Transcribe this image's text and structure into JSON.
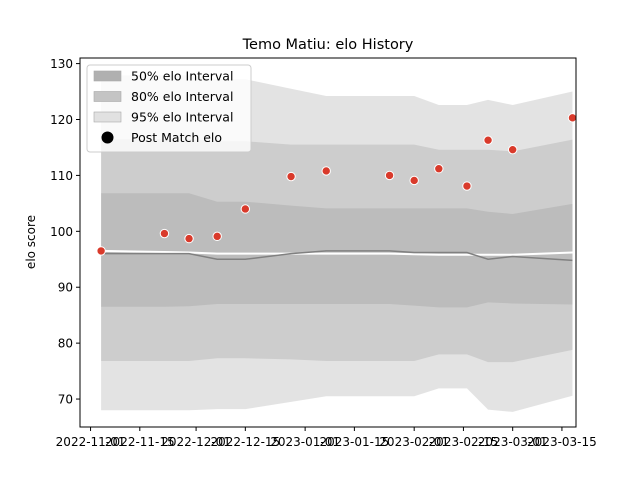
{
  "chart_data": {
    "type": "line",
    "title": "Temo Matiu: elo History",
    "xlabel": "",
    "ylabel": "elo score",
    "grid": false,
    "legend_position": "top-left",
    "ylim": [
      65,
      131
    ],
    "xlim": [
      "2022-10-29",
      "2023-03-19"
    ],
    "x_ticks": [
      "2022-11-01",
      "2022-11-15",
      "2022-12-01",
      "2022-12-15",
      "2023-01-01",
      "2023-01-15",
      "2023-02-01",
      "2023-02-15",
      "2023-03-01",
      "2023-03-15"
    ],
    "y_ticks": [
      70,
      80,
      90,
      100,
      110,
      120,
      130
    ],
    "legend": [
      {
        "label": "50% elo Interval",
        "color": "#b0b0b0"
      },
      {
        "label": "80% elo Interval",
        "color": "#c4c4c4"
      },
      {
        "label": "95% elo Interval",
        "color": "#e1e1e1"
      },
      {
        "label": "Post Match elo",
        "color": "#000000"
      }
    ],
    "band_dates": [
      "2022-11-04",
      "2022-11-22",
      "2022-11-29",
      "2022-12-07",
      "2022-12-15",
      "2022-12-28",
      "2023-01-07",
      "2023-01-25",
      "2023-02-01",
      "2023-02-08",
      "2023-02-16",
      "2023-02-22",
      "2023-03-01",
      "2023-03-18"
    ],
    "mean": [
      96.0,
      96.0,
      96.0,
      95.0,
      95.0,
      96.0,
      96.5,
      96.5,
      96.2,
      96.2,
      96.2,
      95.0,
      95.5,
      94.8
    ],
    "reference_line": [
      96.5,
      96.3,
      96.2,
      96.0,
      96.0,
      96.0,
      96.0,
      96.0,
      95.9,
      95.8,
      95.8,
      95.8,
      95.8,
      96.2
    ],
    "band_50": {
      "lower": [
        86.5,
        86.5,
        86.6,
        87.0,
        87.0,
        87.0,
        87.0,
        87.0,
        86.7,
        86.4,
        86.4,
        87.3,
        87.1,
        86.9
      ],
      "upper": [
        106.8,
        106.8,
        106.8,
        105.3,
        105.3,
        104.6,
        104.1,
        104.1,
        104.1,
        104.1,
        104.1,
        103.5,
        103.1,
        104.9
      ]
    },
    "band_80": {
      "lower": [
        76.8,
        76.8,
        76.8,
        77.3,
        77.3,
        77.1,
        76.8,
        76.8,
        76.8,
        78.0,
        78.0,
        76.6,
        76.6,
        78.8
      ],
      "upper": [
        116.5,
        116.5,
        116.5,
        116.1,
        116.1,
        115.5,
        115.5,
        115.5,
        115.5,
        114.6,
        114.6,
        114.6,
        114.3,
        116.4
      ]
    },
    "band_95": {
      "lower": [
        68.0,
        68.0,
        68.0,
        68.2,
        68.2,
        69.5,
        70.5,
        70.5,
        70.5,
        71.9,
        71.9,
        68.1,
        67.7,
        70.6
      ],
      "upper": [
        127.9,
        127.9,
        127.9,
        127.2,
        127.2,
        125.5,
        124.2,
        124.2,
        124.2,
        122.6,
        122.6,
        123.5,
        122.6,
        125.0
      ]
    },
    "post_match": {
      "name": "Post Match elo",
      "dates": [
        "2022-11-04",
        "2022-11-22",
        "2022-11-29",
        "2022-12-07",
        "2022-12-15",
        "2022-12-28",
        "2023-01-07",
        "2023-01-25",
        "2023-02-01",
        "2023-02-08",
        "2023-02-16",
        "2023-02-22",
        "2023-03-01",
        "2023-03-18"
      ],
      "values": [
        96.5,
        99.6,
        98.7,
        99.1,
        104.0,
        109.8,
        110.8,
        110.0,
        109.1,
        111.2,
        108.1,
        116.3,
        114.6,
        120.3
      ],
      "color": "#d93a2b"
    }
  }
}
